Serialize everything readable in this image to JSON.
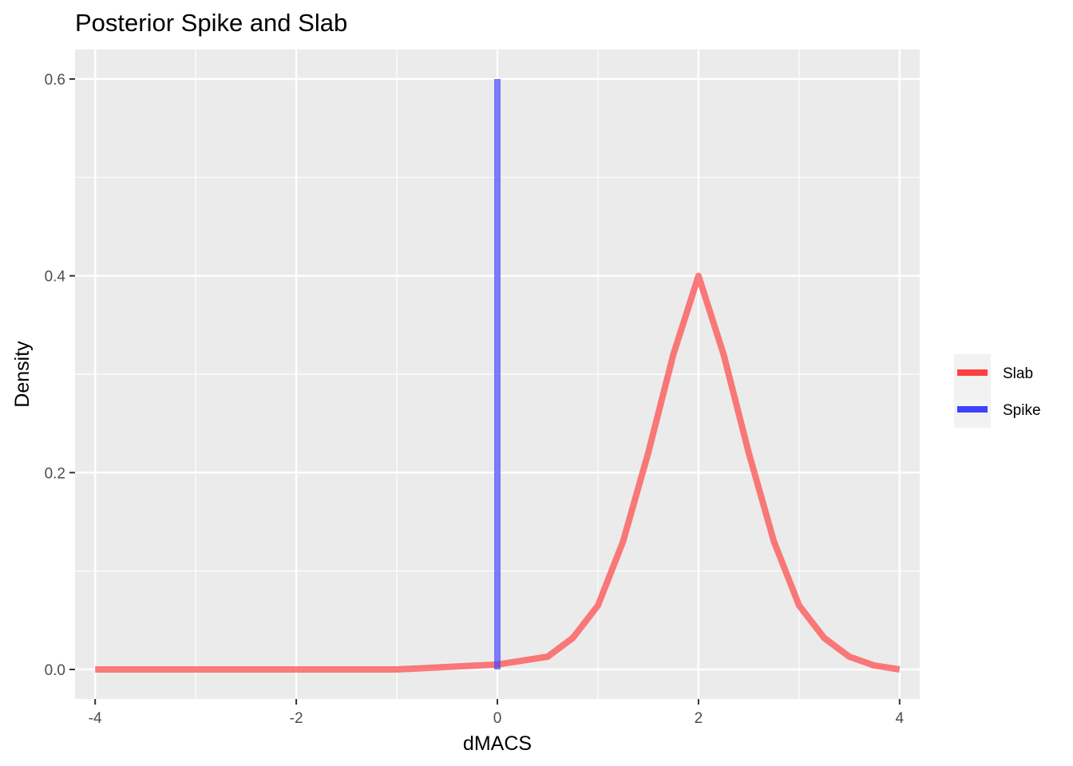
{
  "chart_data": {
    "type": "line",
    "title": "Posterior Spike and Slab",
    "xlabel": "dMACS",
    "ylabel": "Density",
    "xlim": [
      -4.2,
      4.2
    ],
    "ylim": [
      -0.03,
      0.63
    ],
    "x_ticks": [
      -4,
      -2,
      0,
      2,
      4
    ],
    "x_tick_labels": [
      "-4",
      "-2",
      "0",
      "2",
      "4"
    ],
    "y_ticks": [
      0.0,
      0.2,
      0.4,
      0.6
    ],
    "y_tick_labels": [
      "0.0",
      "0.2",
      "0.4",
      "0.6"
    ],
    "grid": true,
    "legend_position": "right",
    "series": [
      {
        "name": "Slab",
        "color": "#FF4040",
        "x": [
          -4.0,
          -3.0,
          -2.0,
          -1.0,
          0.0,
          0.25,
          0.5,
          0.75,
          1.0,
          1.25,
          1.5,
          1.75,
          2.0,
          2.25,
          2.5,
          2.75,
          3.0,
          3.25,
          3.5,
          3.75,
          4.0
        ],
        "y": [
          0.0,
          0.0,
          0.0,
          0.0,
          0.005,
          0.009,
          0.013,
          0.032,
          0.065,
          0.13,
          0.22,
          0.32,
          0.4,
          0.32,
          0.22,
          0.13,
          0.065,
          0.032,
          0.013,
          0.004,
          0.0
        ]
      },
      {
        "name": "Spike",
        "color": "#4040FF",
        "x": [
          0.0,
          0.0
        ],
        "y": [
          0.0,
          0.6
        ]
      }
    ]
  }
}
